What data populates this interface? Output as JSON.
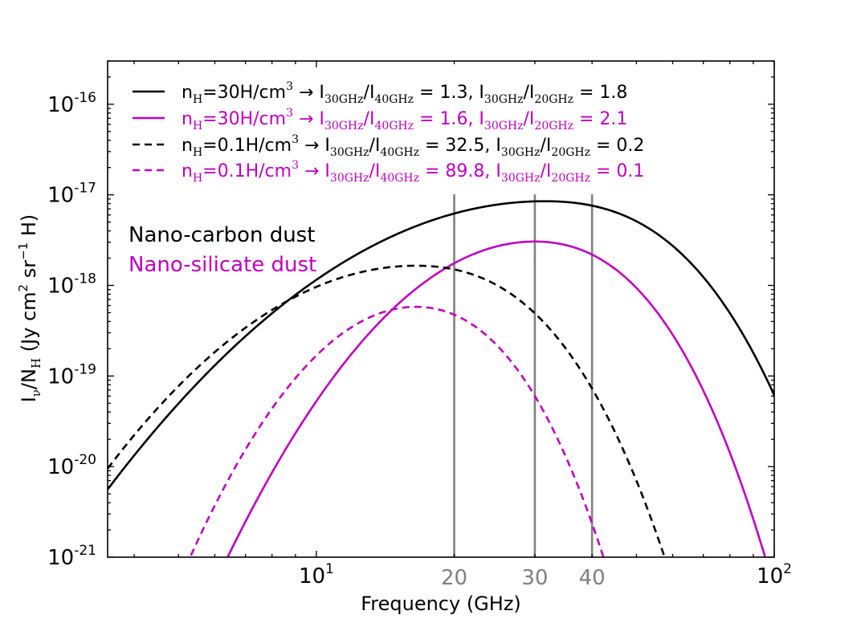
{
  "chart_data": {
    "type": "line",
    "title": "",
    "xlabel": "Frequency (GHz)",
    "ylabel": {
      "main": "I",
      "nu": "ν",
      "sep": "/N",
      "sub": "H",
      "unit_pre": " (Jy cm",
      "exp2": "2",
      "unit_mid": " sr",
      "exp_m1": "−1",
      "unit_h": " H",
      "unit_post": ")"
    },
    "xscale": "log",
    "yscale": "log",
    "xlim": [
      3.5,
      100
    ],
    "ylim": [
      1e-21,
      3e-16
    ],
    "x_ticks": [
      {
        "value": 10,
        "base": "10",
        "exp": "1"
      },
      {
        "value": 100,
        "base": "10",
        "exp": "2"
      }
    ],
    "y_ticks": [
      {
        "value": 1e-21,
        "base": "10",
        "exp": "-21"
      },
      {
        "value": 1e-20,
        "base": "10",
        "exp": "-20"
      },
      {
        "value": 1e-19,
        "base": "10",
        "exp": "-19"
      },
      {
        "value": 1e-18,
        "base": "10",
        "exp": "-18"
      },
      {
        "value": 1e-17,
        "base": "10",
        "exp": "-17"
      },
      {
        "value": 1e-16,
        "base": "10",
        "exp": "-16"
      }
    ],
    "vlines": [
      {
        "x": 20,
        "label": "20",
        "color": "#808080"
      },
      {
        "x": 30,
        "label": "30",
        "color": "#808080"
      },
      {
        "x": 40,
        "label": "40",
        "color": "#808080"
      }
    ],
    "series": [
      {
        "name": "Nano-carbon dust, n_H=30H/cm3",
        "color": "#000000",
        "dash": "solid",
        "peak_x": 31.5,
        "peak_y": 8.5e-18,
        "x0": 3.5,
        "y0": 5.6e-21,
        "falloff": 10,
        "legend": {
          "n": "n",
          "nsub": "H",
          "dens": "=30H/cm",
          "dsup": "3",
          "arrow": " → I",
          "r1sub": "30GHz",
          "r1mid": "/I",
          "r1den": "40GHz",
          "r1val": " = 1.3,   I",
          "r2sub": "30GHz",
          "r2mid": "/I",
          "r2den": "20GHz",
          "r2val": " = 1.8"
        }
      },
      {
        "name": "Nano-silicate dust, n_H=30H/cm3",
        "color": "#bf00bf",
        "dash": "solid",
        "peak_x": 30,
        "peak_y": 3.05e-18,
        "x0": 6.4,
        "y0": 1e-21,
        "falloff": 12,
        "legend": {
          "n": "n",
          "nsub": "H",
          "dens": "=30H/cm",
          "dsup": "3",
          "arrow": " → I",
          "r1sub": "30GHz",
          "r1mid": "/I",
          "r1den": "40GHz",
          "r1val": " = 1.6,   I",
          "r2sub": "30GHz",
          "r2mid": "/I",
          "r2den": "20GHz",
          "r2val": " = 2.1"
        }
      },
      {
        "name": "Nano-carbon dust, n_H=0.1H/cm3",
        "color": "#000000",
        "dash": "dashed",
        "peak_x": 16.5,
        "peak_y": 1.65e-18,
        "x0": 3.5,
        "y0": 9.5e-21,
        "falloff": 11,
        "legend": {
          "n": "n",
          "nsub": "H",
          "dens": "=0.1H/cm",
          "dsup": "3",
          "arrow": " → I",
          "r1sub": "30GHz",
          "r1mid": "/I",
          "r1den": "40GHz",
          "r1val": " = 32.5, I",
          "r2sub": "30GHz",
          "r2mid": "/I",
          "r2den": "20GHz",
          "r2val": " = 0.2"
        }
      },
      {
        "name": "Nano-silicate dust, n_H=0.1H/cm3",
        "color": "#bf00bf",
        "dash": "dashed",
        "peak_x": 16.5,
        "peak_y": 5.8e-19,
        "x0": 5.3,
        "y0": 1e-21,
        "falloff": 12.5,
        "legend": {
          "n": "n",
          "nsub": "H",
          "dens": "=0.1H/cm",
          "dsup": "3",
          "arrow": " → I",
          "r1sub": "30GHz",
          "r1mid": "/I",
          "r1den": "40GHz",
          "r1val": " = 89.8, I",
          "r2sub": "30GHz",
          "r2mid": "/I",
          "r2den": "20GHz",
          "r2val": " = 0.1"
        }
      }
    ],
    "annotations": [
      {
        "text": "Nano-carbon dust",
        "color": "#000000"
      },
      {
        "text": "Nano-silicate dust",
        "color": "#bf00bf"
      }
    ],
    "legend_placement": "top-left"
  }
}
